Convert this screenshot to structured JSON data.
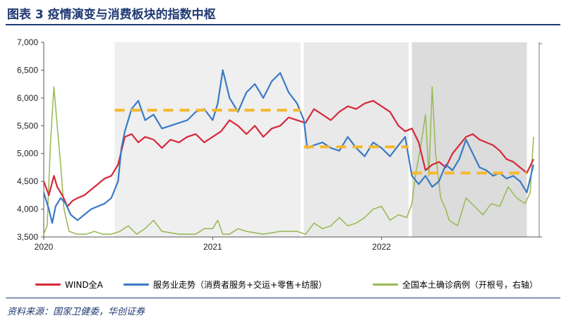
{
  "header": {
    "title": "图表 3 疫情演变与消费板块的指数中枢"
  },
  "source": {
    "text": "资料来源：国家卫健委，华创证券"
  },
  "chart_data": {
    "type": "line",
    "x_ticks": [
      "2020",
      "2021",
      "2022"
    ],
    "y_ticks": [
      "7,000",
      "6,500",
      "6,000",
      "5,500",
      "5,000",
      "4,500",
      "4,000",
      "3,500"
    ],
    "ylim": [
      3500,
      7000
    ],
    "xlim": [
      2020.0,
      2022.95
    ],
    "grid": false,
    "legend_position": "bottom",
    "shaded_periods": [
      {
        "start": 2020.42,
        "end": 2021.52,
        "color": "#efefef"
      },
      {
        "start": 2021.54,
        "end": 2022.16,
        "color": "#e9e9e9"
      },
      {
        "start": 2022.18,
        "end": 2022.86,
        "color": "#dcdcdc"
      }
    ],
    "series": [
      {
        "name": "WIND全A",
        "color": "#d6283a",
        "x": [
          2020.0,
          2020.03,
          2020.06,
          2020.08,
          2020.11,
          2020.14,
          2020.17,
          2020.2,
          2020.24,
          2020.28,
          2020.32,
          2020.36,
          2020.4,
          2020.44,
          2020.48,
          2020.52,
          2020.56,
          2020.6,
          2020.65,
          2020.7,
          2020.75,
          2020.8,
          2020.85,
          2020.9,
          2020.95,
          2021.0,
          2021.05,
          2021.1,
          2021.15,
          2021.2,
          2021.25,
          2021.3,
          2021.35,
          2021.4,
          2021.45,
          2021.5,
          2021.55,
          2021.6,
          2021.65,
          2021.7,
          2021.75,
          2021.8,
          2021.85,
          2021.9,
          2021.95,
          2022.0,
          2022.05,
          2022.1,
          2022.14,
          2022.18,
          2022.22,
          2022.26,
          2022.3,
          2022.34,
          2022.38,
          2022.42,
          2022.46,
          2022.5,
          2022.54,
          2022.58,
          2022.62,
          2022.66,
          2022.7,
          2022.74,
          2022.78,
          2022.82,
          2022.86,
          2022.9
        ],
        "values": [
          4500,
          4250,
          4600,
          4400,
          4250,
          4050,
          4150,
          4200,
          4250,
          4350,
          4450,
          4550,
          4600,
          4800,
          5300,
          5350,
          5200,
          5300,
          5250,
          5100,
          5250,
          5200,
          5300,
          5350,
          5200,
          5300,
          5400,
          5600,
          5500,
          5350,
          5500,
          5300,
          5450,
          5500,
          5650,
          5600,
          5550,
          5800,
          5700,
          5600,
          5750,
          5850,
          5800,
          5900,
          5950,
          5850,
          5750,
          5500,
          5400,
          5450,
          5200,
          4700,
          4800,
          4850,
          4750,
          5000,
          5150,
          5300,
          5350,
          5250,
          5200,
          5150,
          5050,
          4900,
          4850,
          4750,
          4650,
          4900
        ]
      },
      {
        "name": "服务业走势（消费者服务+交运+零售+纺服）",
        "color": "#3a7ac6",
        "x": [
          2020.0,
          2020.03,
          2020.05,
          2020.07,
          2020.1,
          2020.13,
          2020.16,
          2020.2,
          2020.24,
          2020.28,
          2020.32,
          2020.36,
          2020.4,
          2020.44,
          2020.46,
          2020.48,
          2020.52,
          2020.56,
          2020.6,
          2020.65,
          2020.7,
          2020.75,
          2020.8,
          2020.85,
          2020.9,
          2020.95,
          2021.0,
          2021.03,
          2021.06,
          2021.1,
          2021.15,
          2021.2,
          2021.25,
          2021.3,
          2021.35,
          2021.4,
          2021.45,
          2021.5,
          2021.54,
          2021.56,
          2021.6,
          2021.65,
          2021.7,
          2021.75,
          2021.8,
          2021.85,
          2021.9,
          2021.95,
          2022.0,
          2022.05,
          2022.1,
          2022.14,
          2022.18,
          2022.22,
          2022.26,
          2022.3,
          2022.34,
          2022.38,
          2022.42,
          2022.46,
          2022.5,
          2022.54,
          2022.58,
          2022.62,
          2022.66,
          2022.7,
          2022.74,
          2022.78,
          2022.82,
          2022.86,
          2022.9
        ],
        "values": [
          4300,
          4000,
          3750,
          4050,
          4200,
          4100,
          3900,
          3800,
          3900,
          4000,
          4050,
          4100,
          4200,
          4500,
          5100,
          5400,
          5800,
          5950,
          5600,
          5700,
          5450,
          5500,
          5550,
          5600,
          5750,
          5800,
          5600,
          5900,
          6500,
          6000,
          5750,
          6100,
          6250,
          6000,
          6300,
          6450,
          6100,
          5900,
          5600,
          5100,
          5150,
          5200,
          5100,
          5050,
          5300,
          5100,
          4950,
          5200,
          5100,
          4950,
          5150,
          5300,
          4600,
          4450,
          4600,
          4400,
          4500,
          4800,
          4700,
          4900,
          5250,
          5000,
          4750,
          4700,
          4600,
          4650,
          4550,
          4600,
          4500,
          4300,
          4800
        ]
      },
      {
        "name": "全国本土确诊病例（开根号，右轴）",
        "color": "#9bbb59",
        "x": [
          2020.0,
          2020.02,
          2020.04,
          2020.06,
          2020.08,
          2020.1,
          2020.12,
          2020.15,
          2020.2,
          2020.25,
          2020.3,
          2020.35,
          2020.4,
          2020.45,
          2020.5,
          2020.55,
          2020.6,
          2020.65,
          2020.7,
          2020.8,
          2020.9,
          2020.95,
          2021.0,
          2021.03,
          2021.06,
          2021.1,
          2021.15,
          2021.2,
          2021.3,
          2021.4,
          2021.5,
          2021.55,
          2021.6,
          2021.65,
          2021.7,
          2021.75,
          2021.8,
          2021.85,
          2021.9,
          2021.95,
          2022.0,
          2022.05,
          2022.1,
          2022.15,
          2022.18,
          2022.2,
          2022.23,
          2022.26,
          2022.28,
          2022.3,
          2022.32,
          2022.35,
          2022.38,
          2022.4,
          2022.45,
          2022.5,
          2022.55,
          2022.6,
          2022.65,
          2022.7,
          2022.75,
          2022.8,
          2022.85,
          2022.88,
          2022.9
        ],
        "values_plot_scale": [
          3550,
          3700,
          5200,
          6200,
          5500,
          4800,
          4000,
          3600,
          3550,
          3550,
          3600,
          3550,
          3550,
          3600,
          3700,
          3550,
          3650,
          3800,
          3600,
          3550,
          3550,
          3650,
          3650,
          3800,
          3550,
          3550,
          3650,
          3600,
          3550,
          3600,
          3600,
          3550,
          3750,
          3650,
          3700,
          3850,
          3700,
          3750,
          3850,
          4000,
          4050,
          3800,
          3900,
          3850,
          4100,
          4600,
          5100,
          5700,
          4600,
          6200,
          5000,
          4200,
          4000,
          3800,
          3700,
          4200,
          4050,
          3900,
          4100,
          4050,
          4400,
          4200,
          4100,
          4300,
          5300
        ]
      }
    ],
    "dashed_levels": [
      {
        "x_start": 2020.42,
        "x_end": 2021.52,
        "value": 5780,
        "color": "#f5b82e"
      },
      {
        "x_start": 2021.54,
        "x_end": 2022.16,
        "value": 5120,
        "color": "#f5b82e"
      },
      {
        "x_start": 2022.18,
        "x_end": 2022.86,
        "value": 4650,
        "color": "#f5b82e"
      }
    ]
  }
}
